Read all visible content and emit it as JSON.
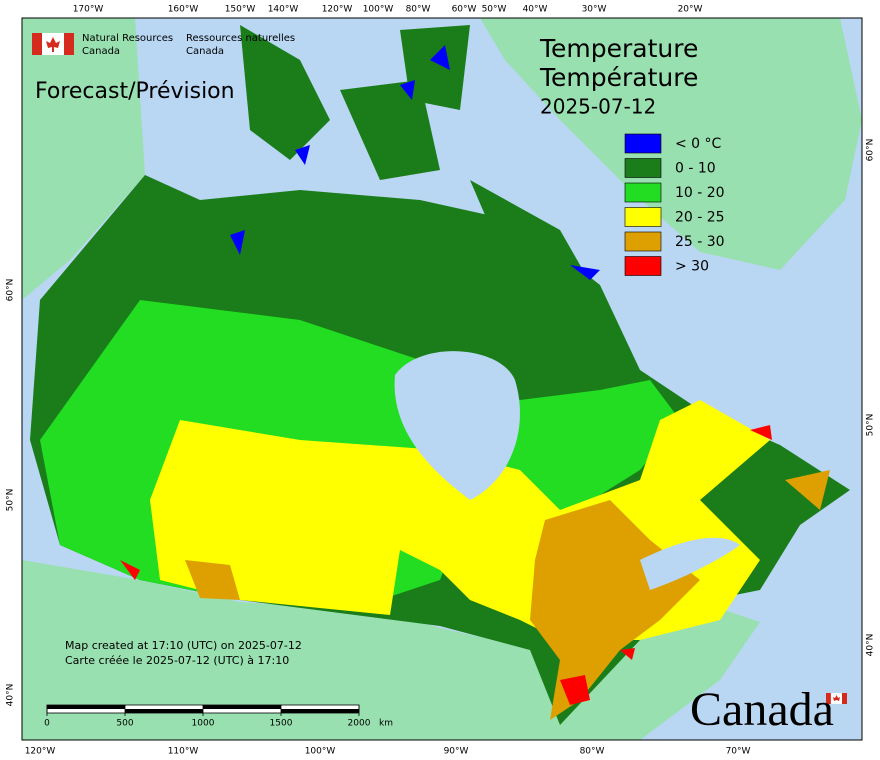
{
  "agency": {
    "en_line1": "Natural Resources",
    "en_line2": "Canada",
    "fr_line1": "Ressources naturelles",
    "fr_line2": "Canada"
  },
  "product_label": "Forecast/Prévision",
  "title": {
    "en": "Temperature",
    "fr": "Température",
    "date": "2025-07-12"
  },
  "legend": [
    {
      "label": "< 0 °C",
      "color": "#0000ff"
    },
    {
      "label": "0 - 10",
      "color": "#1a7d1a"
    },
    {
      "label": "10 - 20",
      "color": "#22dd22"
    },
    {
      "label": "20 - 25",
      "color": "#ffff00"
    },
    {
      "label": "25 - 30",
      "color": "#dda000"
    },
    {
      "label": "> 30",
      "color": "#ff0000"
    }
  ],
  "graticule": {
    "top": [
      "170°W",
      "160°W",
      "150°W",
      "140°W",
      "120°W",
      "100°W",
      "80°W",
      "60°W",
      "50°W",
      "40°W",
      "30°W",
      "20°W"
    ],
    "bottom": [
      "120°W",
      "110°W",
      "100°W",
      "90°W",
      "80°W",
      "70°W"
    ],
    "left": [
      "60°N",
      "50°N",
      "40°N"
    ],
    "right": [
      "60°N",
      "50°N",
      "40°N"
    ]
  },
  "credits": [
    "Map created at 17:10 (UTC) on 2025-07-12",
    "Carte créée le 2025-07-12 (UTC) à 17:10"
  ],
  "scale_bar": {
    "ticks": [
      0,
      500,
      1000,
      1500,
      2000
    ],
    "unit": "km"
  },
  "wordmark": "Canada"
}
